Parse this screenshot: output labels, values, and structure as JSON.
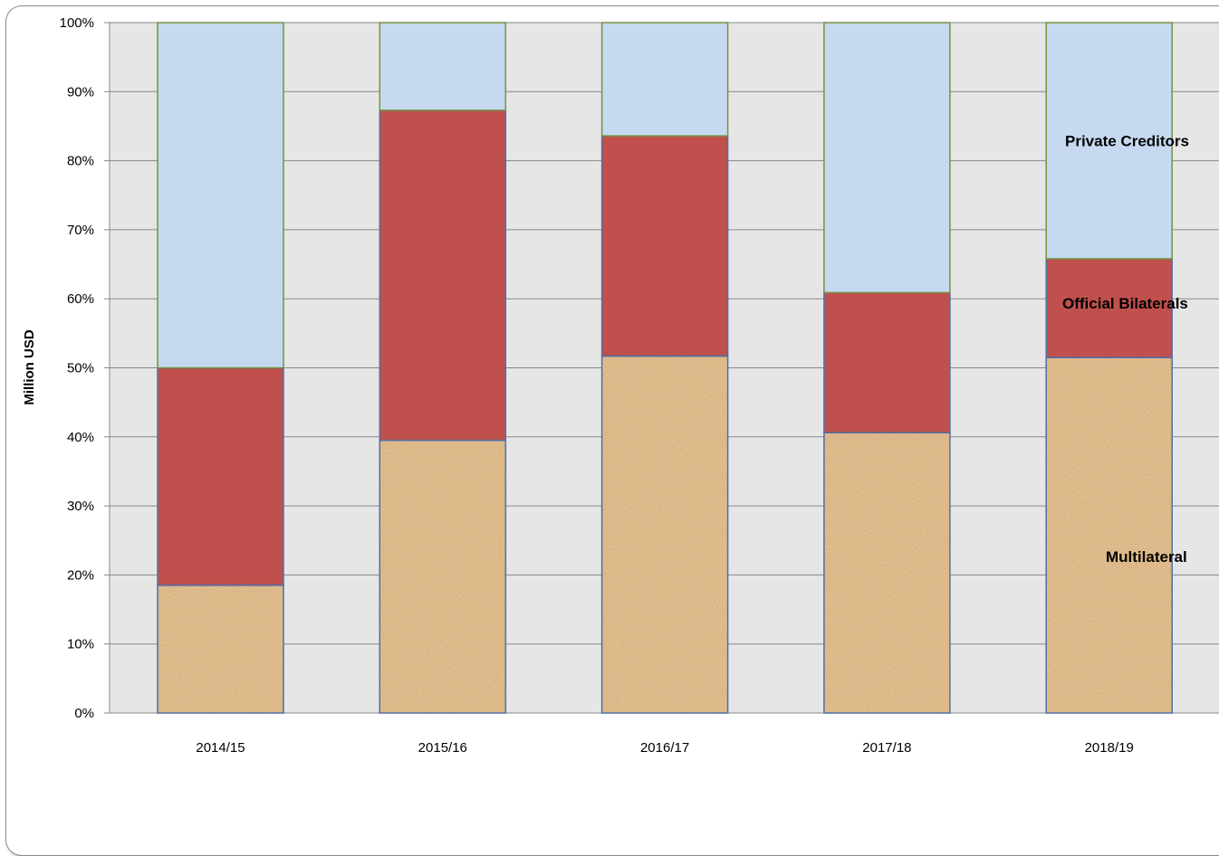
{
  "chart_data": {
    "type": "bar",
    "stacked": true,
    "percent_stacked": true,
    "title": "",
    "xlabel": "",
    "ylabel": "Million USD",
    "ylim": [
      0,
      100
    ],
    "y_ticks": [
      "0%",
      "10%",
      "20%",
      "30%",
      "40%",
      "50%",
      "60%",
      "70%",
      "80%",
      "90%",
      "100%"
    ],
    "grid": true,
    "legend": "none",
    "categories": [
      "2014/15",
      "2015/16",
      "2016/17",
      "2017/18",
      "2018/19"
    ],
    "series": [
      {
        "name": "Multilateral",
        "values": [
          18.5,
          39.5,
          51.7,
          40.6,
          51.5
        ],
        "color": "#c8955e",
        "pattern": "cork-texture"
      },
      {
        "name": "Official Bilaterals",
        "values": [
          31.5,
          47.8,
          31.9,
          20.3,
          14.3
        ],
        "color": "#c0504d"
      },
      {
        "name": "Private Creditors",
        "values": [
          50.0,
          12.7,
          16.4,
          39.1,
          34.2
        ],
        "color": "#c6d9f1"
      }
    ],
    "colors": {
      "plot_background": "#e6e6e6",
      "gridline": "#888888",
      "bar_outline_bottom": "#4f6fa8",
      "bar_outline_top": "#77933c"
    }
  }
}
